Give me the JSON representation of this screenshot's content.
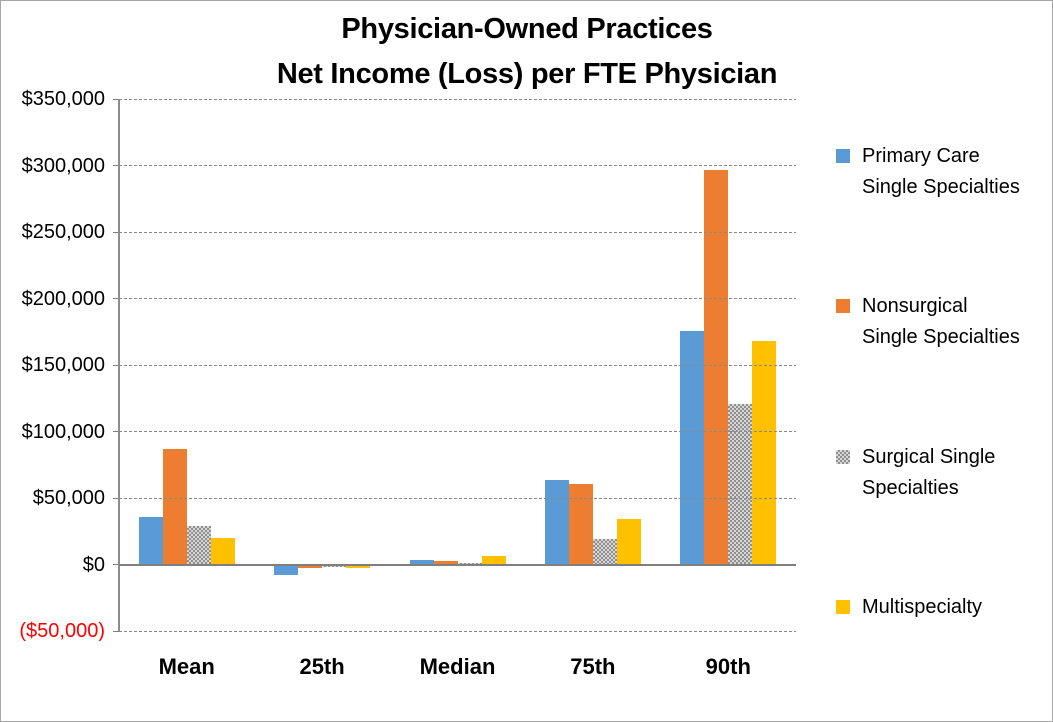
{
  "title": {
    "line1": "Physician-Owned Practices",
    "line2": "Net Income (Loss) per FTE Physician"
  },
  "chart_data": {
    "type": "bar",
    "title": "Physician-Owned Practices Net Income (Loss) per FTE Physician",
    "categories": [
      "Mean",
      "25th",
      "Median",
      "75th",
      "90th"
    ],
    "series": [
      {
        "name": "Primary Care Single Specialties",
        "legend_lines": [
          "Primary Care",
          "Single Specialties"
        ],
        "color": "#5B9BD5",
        "fill": "solid",
        "values": [
          36000,
          -7500,
          3500,
          63500,
          175500
        ]
      },
      {
        "name": "Nonsurgical Single Specialties",
        "legend_lines": [
          "Nonsurgical",
          "Single Specialties"
        ],
        "color": "#ED7D31",
        "fill": "solid",
        "values": [
          86500,
          -2000,
          2500,
          60500,
          296500
        ]
      },
      {
        "name": "Surgical Single Specialties",
        "legend_lines": [
          "Surgical Single",
          "Specialties"
        ],
        "color": "#A5A5A5",
        "fill": "dotted",
        "values": [
          29000,
          -1500,
          1000,
          19500,
          121000
        ]
      },
      {
        "name": "Multispecialty",
        "legend_lines": [
          "Multispecialty"
        ],
        "color": "#FFC000",
        "fill": "solid",
        "values": [
          20000,
          -2000,
          6500,
          34500,
          168000
        ]
      }
    ],
    "xlabel": "",
    "ylabel": "",
    "ylim": [
      -50000,
      350000
    ],
    "ytick_step": 50000,
    "ytick_labels_top_to_bottom": [
      "$350,000",
      "$300,000",
      "$250,000",
      "$200,000",
      "$150,000",
      "$100,000",
      "$50,000",
      "$0",
      "($50,000)"
    ],
    "negative_tick_color": "#FF0000",
    "grid": true,
    "legend_position": "right"
  }
}
